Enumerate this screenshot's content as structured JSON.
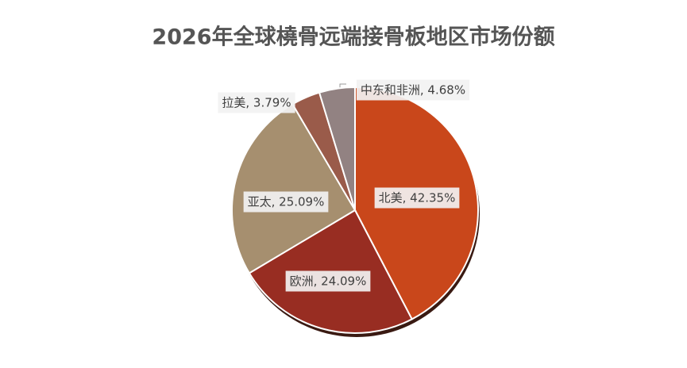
{
  "chart_data": {
    "type": "pie",
    "title": "2026年全球橈骨远端接骨板地区市场份额",
    "values": [
      42.35,
      24.09,
      25.09,
      3.79,
      4.68
    ],
    "value_labels": [
      "北美, 42.35%",
      "欧洲, 24.09%",
      "亚太, 25.09%",
      "拉美, 3.79%",
      "中东和非洲, 4.68%"
    ],
    "colors": [
      "#c9471b",
      "#982d22",
      "#a68f6f",
      "#9a5b4a",
      "#928282"
    ]
  }
}
